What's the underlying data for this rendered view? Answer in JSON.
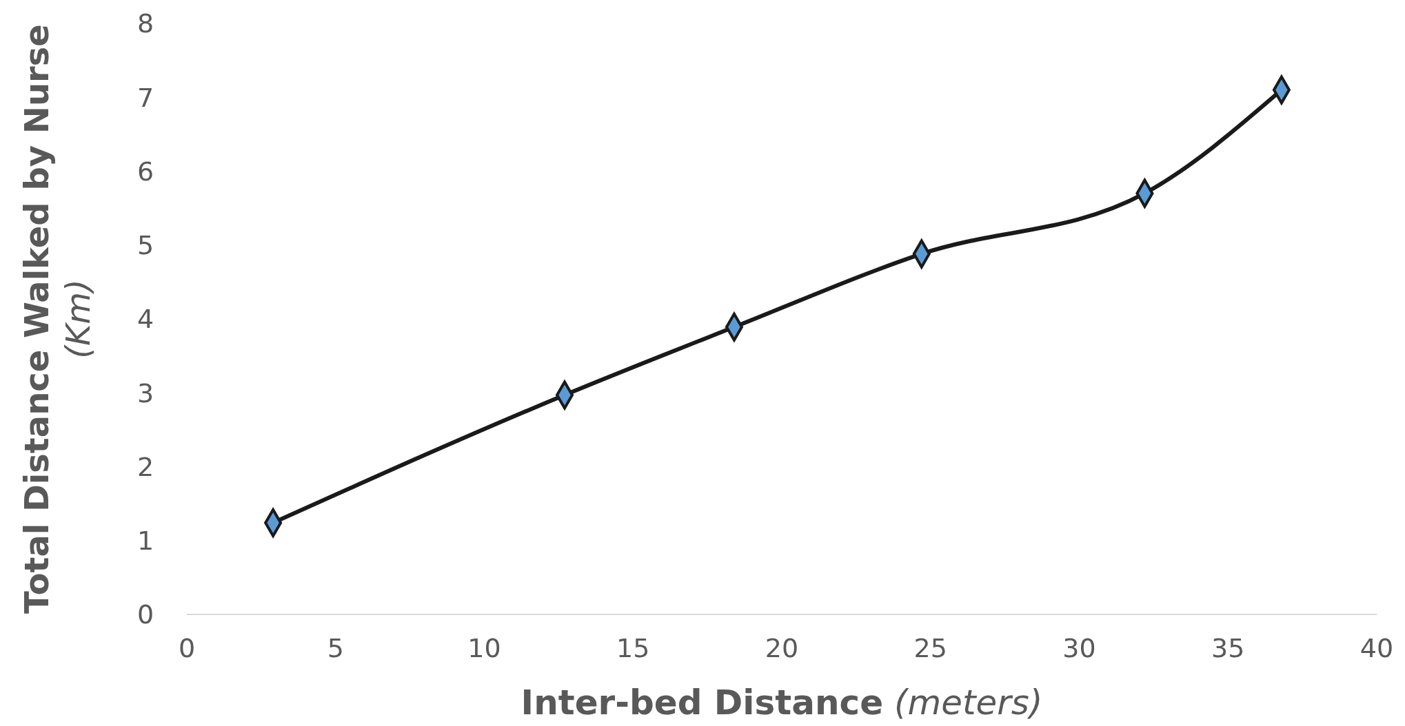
{
  "chart_data": {
    "type": "line",
    "xlabel": "Inter-bed Distance (meters)",
    "ylabel": "Total Distance Walked by Nurse (Km)",
    "x": [
      2.9,
      12.7,
      18.4,
      24.7,
      32.2,
      36.8
    ],
    "series": [
      {
        "color": "#1a1a1a",
        "values": [
          1.24,
          2.97,
          3.89,
          4.88,
          5.7,
          7.1
        ]
      }
    ],
    "xlim": [
      0,
      40
    ],
    "xticks": [
      0,
      5,
      10,
      15,
      20,
      25,
      30,
      35,
      40
    ],
    "ylim": [
      0,
      8
    ],
    "yticks": [
      0,
      1,
      2,
      3,
      4,
      5,
      6,
      7,
      8
    ],
    "grid": false,
    "marker": "diamond",
    "line_style": "solid"
  }
}
